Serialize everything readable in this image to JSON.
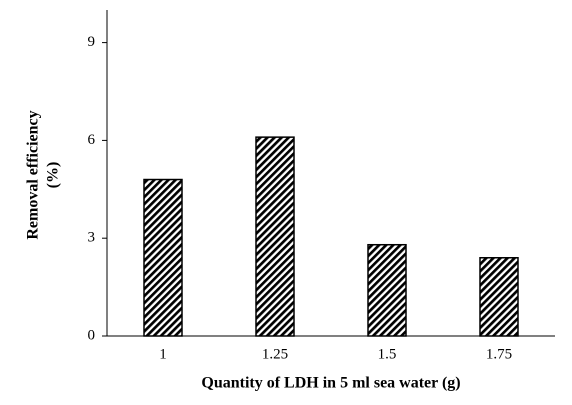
{
  "chart_data": {
    "type": "bar",
    "x_label": "Quantity of LDH in 5 ml sea water (g)",
    "y_label": [
      "Removal efficiency",
      "(%)"
    ],
    "categories": [
      "1",
      "1.25",
      "1.5",
      "1.75"
    ],
    "values": [
      4.8,
      6.1,
      2.8,
      2.4
    ],
    "color": "#000000",
    "hatch": "diagonal",
    "ylim": [
      0,
      10
    ],
    "yticks": [
      0,
      3,
      6,
      9
    ],
    "grid": false
  }
}
